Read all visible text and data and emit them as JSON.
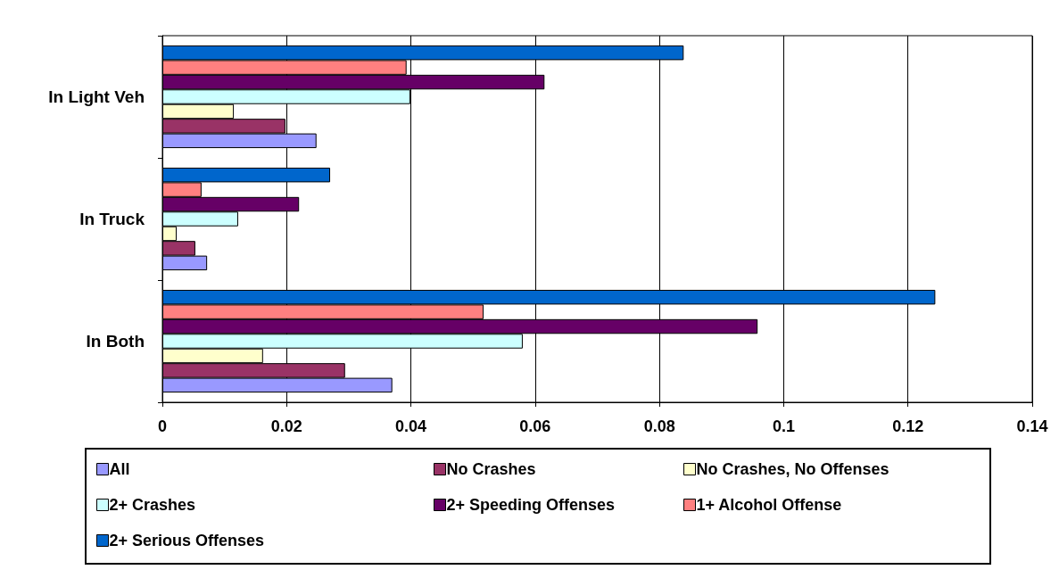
{
  "chart_data": {
    "type": "bar",
    "orientation": "horizontal",
    "categories": [
      "In Light Veh",
      "In Truck",
      "In Both"
    ],
    "series": [
      {
        "name": "All",
        "color": "#9999ff",
        "values": [
          0.0248,
          0.0072,
          0.037
        ]
      },
      {
        "name": "No Crashes",
        "color": "#993366",
        "values": [
          0.0198,
          0.0053,
          0.0294
        ]
      },
      {
        "name": "No Crashes, No Offenses",
        "color": "#ffffcc",
        "values": [
          0.0115,
          0.0023,
          0.0162
        ]
      },
      {
        "name": "2+ Crashes",
        "color": "#ccffff",
        "values": [
          0.0399,
          0.0122,
          0.058
        ]
      },
      {
        "name": "2+ Speeding Offenses",
        "color": "#660066",
        "values": [
          0.0615,
          0.022,
          0.0958
        ]
      },
      {
        "name": "1+ Alcohol Offense",
        "color": "#ff8080",
        "values": [
          0.0393,
          0.0063,
          0.0517
        ]
      },
      {
        "name": "2+ Serious Offenses",
        "color": "#0066cc",
        "values": [
          0.0839,
          0.027,
          0.1244
        ]
      }
    ],
    "xlim": [
      0,
      0.14
    ],
    "xticks": [
      0,
      0.02,
      0.04,
      0.06,
      0.08,
      0.1,
      0.12,
      0.14
    ],
    "grid": "x",
    "legend": "bottom"
  }
}
